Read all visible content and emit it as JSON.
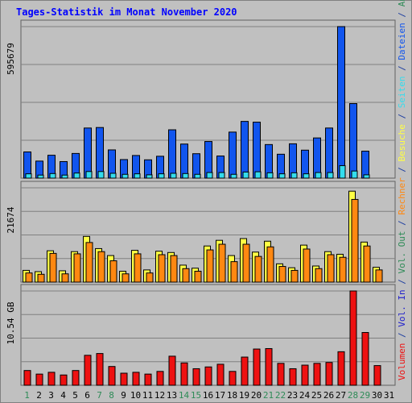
{
  "chart_data": {
    "type": "bar",
    "title": "Tages-Statistik im Monat November 2020",
    "title_color": "#0000ff",
    "days": [
      "1",
      "2",
      "3",
      "4",
      "5",
      "6",
      "7",
      "8",
      "9",
      "10",
      "11",
      "12",
      "13",
      "14",
      "15",
      "16",
      "17",
      "18",
      "19",
      "20",
      "21",
      "22",
      "23",
      "24",
      "25",
      "26",
      "27",
      "28",
      "29",
      "30",
      "31"
    ],
    "weekend_days": [
      "1",
      "7",
      "8",
      "14",
      "15",
      "21",
      "22",
      "28",
      "29"
    ],
    "weekend_color": "#2e8b57",
    "weekday_color": "#000000",
    "background": "#c0c0c0",
    "gridline_color": "#808080",
    "panels": [
      {
        "ylabel": "595679",
        "ymax": 595679,
        "series": [
          {
            "name": "Anfragen",
            "color": "#33cc99",
            "values": [
              null,
              null,
              null,
              null,
              null,
              null,
              null,
              null,
              null,
              null,
              null,
              null,
              null,
              null,
              null,
              null,
              null,
              null,
              null,
              null,
              null,
              null,
              null,
              null,
              null,
              null,
              null,
              null,
              null,
              null,
              null
            ]
          },
          {
            "name": "Dateien",
            "color": "#1155ee",
            "values": [
              103000,
              67000,
              90000,
              65000,
              97000,
              197000,
              199000,
              111000,
              73000,
              89000,
              72000,
              86000,
              190000,
              134000,
              96000,
              144000,
              87000,
              181000,
              223000,
              220000,
              132000,
              94000,
              135000,
              110000,
              158000,
              197000,
              595679,
              293000,
              106000,
              null,
              null
            ]
          },
          {
            "name": "Seiten",
            "color": "#33ddee",
            "values": [
              17000,
              12000,
              18000,
              12000,
              20000,
              26000,
              26000,
              19000,
              15000,
              17000,
              13000,
              17000,
              19000,
              18000,
              15000,
              22000,
              22000,
              15000,
              24000,
              25000,
              21000,
              17000,
              21000,
              17000,
              22000,
              22000,
              49000,
              28000,
              13000,
              null,
              null
            ]
          }
        ]
      },
      {
        "ylabel": "21674",
        "ymax": 21674,
        "series": [
          {
            "name": "Besuche",
            "color": "#ffff44",
            "values": [
              2700,
              2400,
              7200,
              2600,
              7000,
              10500,
              7700,
              6100,
              2500,
              7300,
              2800,
              7100,
              6800,
              3900,
              3200,
              8300,
              9600,
              6100,
              10000,
              6900,
              9400,
              4200,
              3300,
              8500,
              3700,
              7000,
              6400,
              20900,
              9200,
              3400,
              null
            ]
          },
          {
            "name": "Rechner",
            "color": "#ff8811",
            "values": [
              2100,
              1800,
              6600,
              1900,
              6500,
              9100,
              7000,
              4900,
              1900,
              6500,
              2100,
              6300,
              6100,
              3100,
              2500,
              7400,
              8700,
              4700,
              8700,
              5900,
              8100,
              3600,
              2700,
              7600,
              3100,
              6300,
              5700,
              19000,
              8300,
              2800,
              null
            ]
          }
        ]
      },
      {
        "ylabel": "10.54 GB",
        "ymax": 10.54,
        "series": [
          {
            "name": "Volumen",
            "color": "#ee1111",
            "values": [
              1.65,
              1.25,
              1.45,
              1.15,
              1.65,
              3.35,
              3.55,
              2.1,
              1.35,
              1.45,
              1.25,
              1.55,
              3.25,
              2.5,
              1.85,
              2.05,
              2.35,
              1.55,
              3.15,
              4.05,
              4.1,
              2.45,
              1.85,
              2.25,
              2.45,
              2.55,
              3.75,
              10.54,
              5.9,
              2.2,
              null
            ]
          }
        ]
      }
    ],
    "right_labels": [
      {
        "text": "Volumen",
        "color": "#ee1111"
      },
      {
        "text": " / ",
        "color": "#2040a0"
      },
      {
        "text": "Vol. In",
        "color": "#2020cc"
      },
      {
        "text": " / ",
        "color": "#2040a0"
      },
      {
        "text": "Vol. Out",
        "color": "#2e8b57"
      },
      {
        "text": " / ",
        "color": "#2040a0"
      },
      {
        "text": "Rechner",
        "color": "#ff8811"
      },
      {
        "text": " / ",
        "color": "#2040a0"
      },
      {
        "text": "Besuche",
        "color": "#ffff44"
      },
      {
        "text": " / ",
        "color": "#2040a0"
      },
      {
        "text": "Seiten",
        "color": "#33ddee"
      },
      {
        "text": " / ",
        "color": "#2040a0"
      },
      {
        "text": "Dateien",
        "color": "#1155ee"
      },
      {
        "text": " / ",
        "color": "#2040a0"
      },
      {
        "text": "Anfragen",
        "color": "#2e8b57"
      }
    ]
  }
}
